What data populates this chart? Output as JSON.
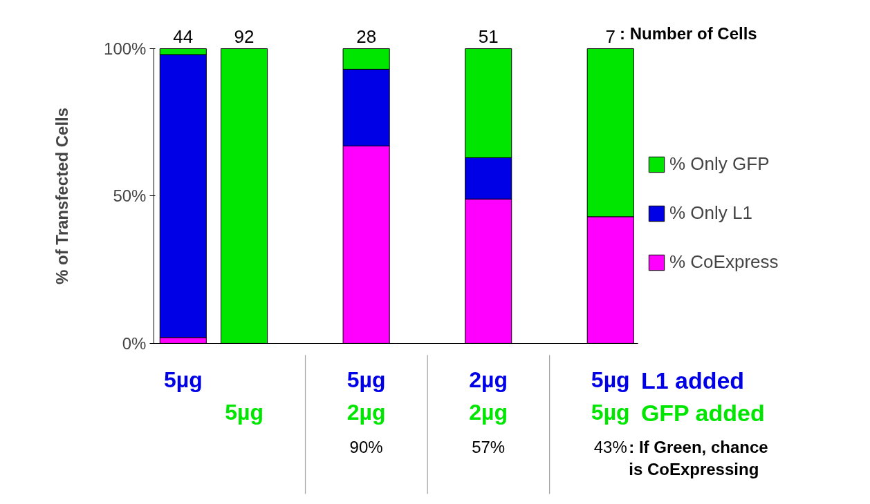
{
  "chart_data": {
    "type": "bar",
    "stacked": true,
    "ylabel": "% of Transfected Cells",
    "categories": [
      null,
      null,
      null,
      null,
      null
    ],
    "series": [
      {
        "name": "% CoExpress",
        "color": "#ff00ff",
        "values": [
          2,
          0,
          67,
          49,
          43
        ]
      },
      {
        "name": "% Only L1",
        "color": "#0000e6",
        "values": [
          96,
          0,
          26,
          14,
          0
        ]
      },
      {
        "name": "% Only GFP",
        "color": "#00e600",
        "values": [
          2,
          100,
          7,
          37,
          57
        ]
      }
    ],
    "ylim": [
      0,
      100
    ],
    "yticks": [
      {
        "value": 0,
        "label": "0%"
      },
      {
        "value": 50,
        "label": "50%"
      },
      {
        "value": 100,
        "label": "100%"
      }
    ],
    "grid": false,
    "legend": "right",
    "annotations": [
      "44",
      "92",
      "28",
      "51",
      "7",
      ": Number of Cells",
      "5µg",
      "5µg",
      "2µg",
      "5µg",
      "L1 added",
      "5µg",
      "2µg",
      "2µg",
      "5µg",
      "GFP added",
      "90%",
      "57%",
      "43%",
      ": If Green, chance\nis CoExpressing"
    ]
  }
}
